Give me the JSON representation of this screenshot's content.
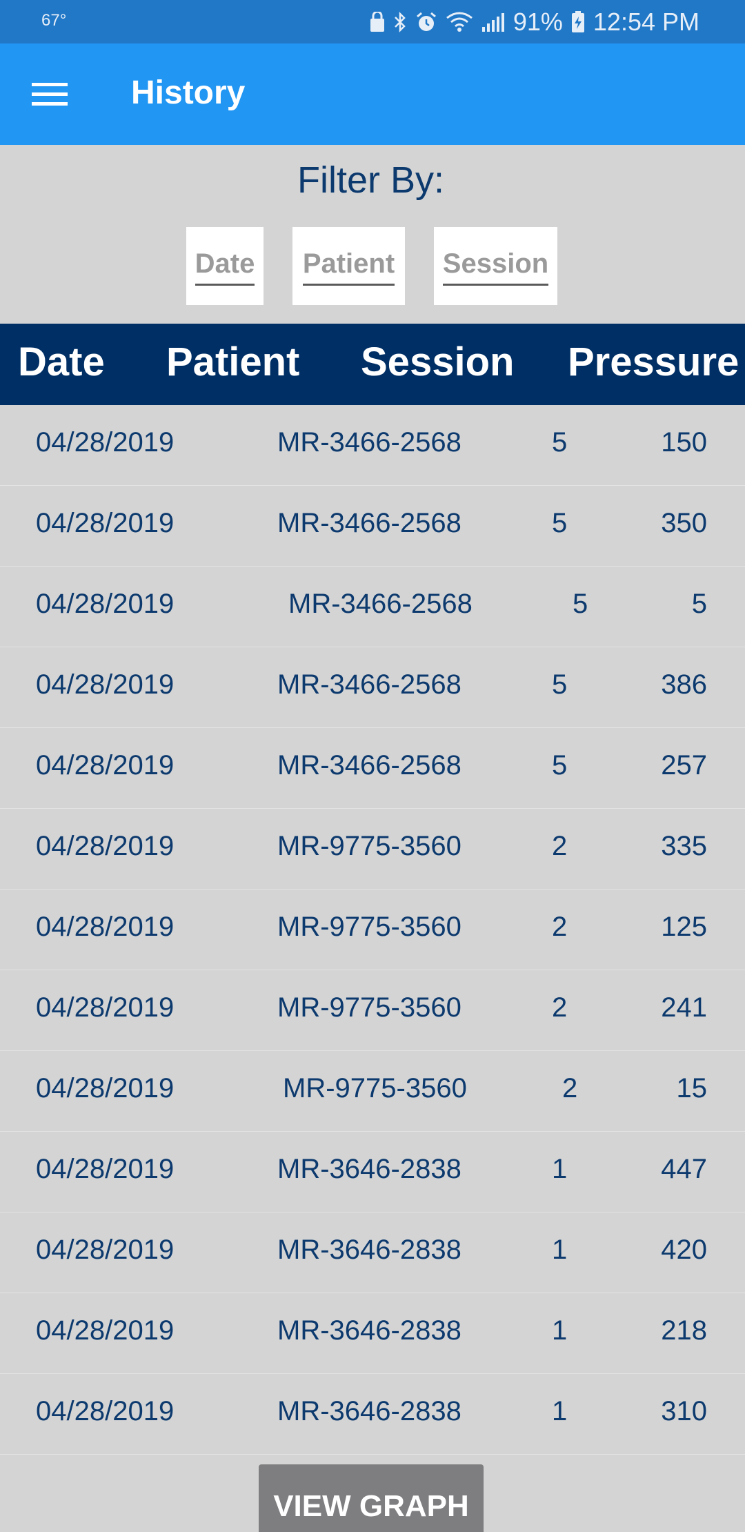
{
  "status_bar": {
    "temperature": "67°",
    "battery": "91%",
    "time": "12:54 PM",
    "icons": [
      "lock-icon",
      "bluetooth-icon",
      "alarm-icon",
      "wifi-icon",
      "signal-icon",
      "battery-charging-icon"
    ]
  },
  "app_bar": {
    "title": "History",
    "menu_icon": "hamburger-menu-icon",
    "color": "#2196f3"
  },
  "filter": {
    "label": "Filter By:",
    "buttons": [
      "Date",
      "Patient",
      "Session"
    ]
  },
  "table": {
    "headers": [
      "Date",
      "Patient",
      "Session",
      "Pressure"
    ],
    "header_color": "#002f65",
    "rows": [
      {
        "date": "04/28/2019",
        "patient": "MR-3466-2568",
        "session": "5",
        "pressure": "150"
      },
      {
        "date": "04/28/2019",
        "patient": "MR-3466-2568",
        "session": "5",
        "pressure": "350"
      },
      {
        "date": "04/28/2019",
        "patient": "MR-3466-2568",
        "session": "5",
        "pressure": "5"
      },
      {
        "date": "04/28/2019",
        "patient": "MR-3466-2568",
        "session": "5",
        "pressure": "386"
      },
      {
        "date": "04/28/2019",
        "patient": "MR-3466-2568",
        "session": "5",
        "pressure": "257"
      },
      {
        "date": "04/28/2019",
        "patient": "MR-9775-3560",
        "session": "2",
        "pressure": "335"
      },
      {
        "date": "04/28/2019",
        "patient": "MR-9775-3560",
        "session": "2",
        "pressure": "125"
      },
      {
        "date": "04/28/2019",
        "patient": "MR-9775-3560",
        "session": "2",
        "pressure": "241"
      },
      {
        "date": "04/28/2019",
        "patient": "MR-9775-3560",
        "session": "2",
        "pressure": "15"
      },
      {
        "date": "04/28/2019",
        "patient": "MR-3646-2838",
        "session": "1",
        "pressure": "447"
      },
      {
        "date": "04/28/2019",
        "patient": "MR-3646-2838",
        "session": "1",
        "pressure": "420"
      },
      {
        "date": "04/28/2019",
        "patient": "MR-3646-2838",
        "session": "1",
        "pressure": "218"
      },
      {
        "date": "04/28/2019",
        "patient": "MR-3646-2838",
        "session": "1",
        "pressure": "310"
      }
    ]
  },
  "view_graph_button": {
    "label": "VIEW GRAPH"
  }
}
